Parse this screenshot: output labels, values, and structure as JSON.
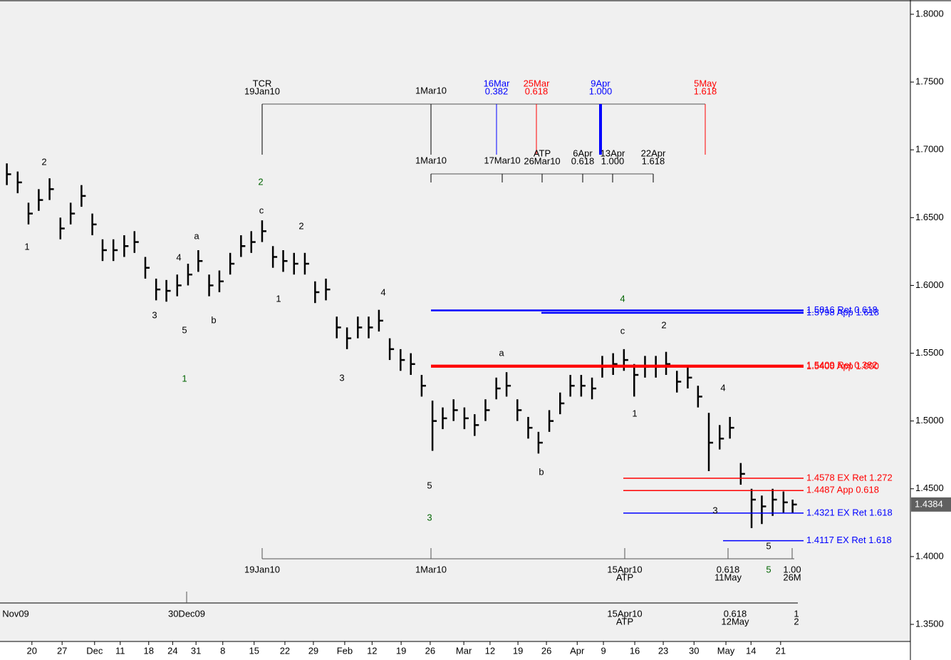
{
  "chart_data": {
    "type": "ohlc",
    "x": [
      1.2,
      3.1,
      5.0,
      6.8,
      8.7,
      10.6,
      12.4,
      14.3,
      16.2,
      18.0,
      19.9,
      21.8,
      23.6,
      25.5,
      27.4,
      29.2,
      31.1,
      33.0,
      34.8,
      36.7,
      38.5,
      40.4,
      42.3,
      44.1,
      46.0,
      47.9,
      49.7,
      51.6,
      53.5,
      55.3,
      57.2,
      59.1,
      60.9,
      62.8,
      64.7,
      66.5,
      68.4,
      70.3,
      72.1,
      74.0,
      75.9,
      77.7,
      79.6,
      81.5,
      83.3,
      85.2,
      87.1,
      88.9,
      90.8,
      92.7,
      94.5,
      96.4,
      98.3,
      100.1,
      102.0,
      103.9,
      105.7,
      107.6,
      109.5,
      111.3,
      113.2,
      115.1,
      116.9,
      118.8,
      120.7,
      122.5,
      124.4,
      126.3,
      128.1,
      130.0,
      131.9,
      133.7,
      135.6,
      137.5,
      139.1
    ],
    "high": [
      1.69,
      1.684,
      1.661,
      1.671,
      1.679,
      1.65,
      1.661,
      1.674,
      1.653,
      1.634,
      1.634,
      1.637,
      1.64,
      1.621,
      1.605,
      1.604,
      1.608,
      1.616,
      1.626,
      1.608,
      1.611,
      1.624,
      1.637,
      1.64,
      1.648,
      1.629,
      1.626,
      1.624,
      1.624,
      1.603,
      1.605,
      1.577,
      1.569,
      1.577,
      1.577,
      1.582,
      1.561,
      1.553,
      1.55,
      1.534,
      1.515,
      1.51,
      1.516,
      1.51,
      1.505,
      1.516,
      1.532,
      1.536,
      1.516,
      1.503,
      1.492,
      1.508,
      1.521,
      1.534,
      1.534,
      1.532,
      1.548,
      1.55,
      1.553,
      1.542,
      1.548,
      1.548,
      1.551,
      1.537,
      1.54,
      1.526,
      1.506,
      1.497,
      1.503,
      1.469,
      1.45,
      1.445,
      1.45,
      1.448,
      1.442
    ],
    "low": [
      1.674,
      1.668,
      1.645,
      1.655,
      1.663,
      1.634,
      1.645,
      1.658,
      1.637,
      1.618,
      1.618,
      1.621,
      1.624,
      1.605,
      1.589,
      1.588,
      1.592,
      1.6,
      1.61,
      1.592,
      1.595,
      1.608,
      1.621,
      1.624,
      1.632,
      1.613,
      1.61,
      1.608,
      1.608,
      1.587,
      1.589,
      1.561,
      1.553,
      1.561,
      1.561,
      1.566,
      1.545,
      1.537,
      1.534,
      1.518,
      1.478,
      1.494,
      1.5,
      1.494,
      1.489,
      1.5,
      1.516,
      1.518,
      1.5,
      1.487,
      1.476,
      1.492,
      1.505,
      1.518,
      1.518,
      1.516,
      1.532,
      1.534,
      1.537,
      1.518,
      1.532,
      1.532,
      1.534,
      1.521,
      1.524,
      1.51,
      1.463,
      1.479,
      1.487,
      1.453,
      1.421,
      1.424,
      1.43,
      1.432,
      1.432
    ],
    "close": [
      1.682,
      1.676,
      1.653,
      1.663,
      1.671,
      1.642,
      1.653,
      1.666,
      1.645,
      1.626,
      1.626,
      1.629,
      1.632,
      1.613,
      1.597,
      1.596,
      1.6,
      1.608,
      1.618,
      1.6,
      1.603,
      1.616,
      1.629,
      1.632,
      1.64,
      1.621,
      1.618,
      1.616,
      1.616,
      1.595,
      1.597,
      1.569,
      1.561,
      1.569,
      1.569,
      1.574,
      1.553,
      1.545,
      1.542,
      1.526,
      1.5,
      1.502,
      1.508,
      1.502,
      1.497,
      1.508,
      1.524,
      1.526,
      1.508,
      1.495,
      1.484,
      1.5,
      1.513,
      1.526,
      1.526,
      1.524,
      1.54,
      1.542,
      1.545,
      1.534,
      1.54,
      1.54,
      1.542,
      1.529,
      1.532,
      1.518,
      1.484,
      1.487,
      1.495,
      1.461,
      1.442,
      1.437,
      1.442,
      1.44,
      1.4384
    ],
    "last_price": {
      "value": 1.4384,
      "label": "1.4384"
    },
    "color": "#000000",
    "xlim": [
      0,
      159.4
    ],
    "xticks": [
      {
        "value": 5.6,
        "label": "20"
      },
      {
        "value": 10.9,
        "label": "27"
      },
      {
        "value": 16.6,
        "label": "Dec"
      },
      {
        "value": 21.1,
        "label": "11"
      },
      {
        "value": 26.1,
        "label": "18"
      },
      {
        "value": 30.3,
        "label": "24"
      },
      {
        "value": 34.4,
        "label": "31"
      },
      {
        "value": 39.1,
        "label": "8"
      },
      {
        "value": 44.6,
        "label": "15"
      },
      {
        "value": 50.0,
        "label": "22"
      },
      {
        "value": 55.0,
        "label": "29"
      },
      {
        "value": 60.5,
        "label": "Feb"
      },
      {
        "value": 65.3,
        "label": "12"
      },
      {
        "value": 70.4,
        "label": "19"
      },
      {
        "value": 75.5,
        "label": "26"
      },
      {
        "value": 81.4,
        "label": "Mar"
      },
      {
        "value": 86.0,
        "label": "12"
      },
      {
        "value": 90.9,
        "label": "19"
      },
      {
        "value": 95.9,
        "label": "26"
      },
      {
        "value": 101.3,
        "label": "Apr"
      },
      {
        "value": 105.9,
        "label": "9"
      },
      {
        "value": 111.4,
        "label": "16"
      },
      {
        "value": 116.4,
        "label": "23"
      },
      {
        "value": 121.8,
        "label": "30"
      },
      {
        "value": 127.4,
        "label": "May"
      },
      {
        "value": 131.8,
        "label": "14"
      },
      {
        "value": 137.0,
        "label": "21"
      }
    ],
    "ylim": [
      1.35,
      1.8
    ],
    "yticks": [
      {
        "value": 1.35,
        "label": "1.3500"
      },
      {
        "value": 1.4,
        "label": "1.4000"
      },
      {
        "value": 1.45,
        "label": "1.4500"
      },
      {
        "value": 1.5,
        "label": "1.5000"
      },
      {
        "value": 1.55,
        "label": "1.5500"
      },
      {
        "value": 1.6,
        "label": "1.6000"
      },
      {
        "value": 1.65,
        "label": "1.6500"
      },
      {
        "value": 1.7,
        "label": "1.7000"
      },
      {
        "value": 1.75,
        "label": "1.7500"
      },
      {
        "value": 1.8,
        "label": "1.8000"
      }
    ],
    "levels": [
      {
        "value": 1.5816,
        "label": "1.5816 Ret 0.618",
        "color": "#0000ff"
      },
      {
        "value": 1.5798,
        "label": "1.5798 App 1.618",
        "color": "#0000ff"
      },
      {
        "value": 1.5409,
        "label": "1.5409 Ret 0.382",
        "color": "#ff0000"
      },
      {
        "value": 1.54,
        "label": "1.5400 App 1.000",
        "color": "#ff0000"
      },
      {
        "value": 1.4578,
        "label": "1.4578 EX Ret 1.272",
        "color": "#ff0000"
      },
      {
        "value": 1.4487,
        "label": "1.4487 App 0.618",
        "color": "#ff0000"
      },
      {
        "value": 1.4321,
        "label": "1.4321 EX Ret 1.618",
        "color": "#0000ff"
      },
      {
        "value": 1.4117,
        "label": "1.4117 EX Ret 1.618",
        "color": "#0000ff"
      }
    ],
    "wave_labels": [
      "2",
      "1",
      "3",
      "4",
      "5",
      "a",
      "b",
      "1",
      "c",
      "2",
      "2",
      "1",
      "4",
      "3",
      "5",
      "3",
      "a",
      "b",
      "4",
      "c",
      "2",
      "1",
      "4",
      "3",
      "5",
      "5"
    ],
    "time_projections": [
      [
        [
          "TCR",
          "19Jan10"
        ],
        [
          "1Mar10"
        ],
        [
          "16Mar",
          "0.382"
        ],
        [
          "25Mar",
          "0.618"
        ],
        [
          "9Apr",
          "1.000"
        ],
        [
          "5May",
          "1.618"
        ]
      ],
      [
        [
          "1Mar10"
        ],
        [
          "17Mar10"
        ],
        [
          "ATP",
          "26Mar10"
        ],
        [
          "6Apr",
          "0.618"
        ],
        [
          "13Apr",
          "1.000"
        ],
        [
          "22Apr",
          "1.618"
        ]
      ],
      [
        [
          "19Jan10"
        ],
        [
          "1Mar10"
        ],
        [
          "15Apr10",
          "ATP"
        ],
        [
          "0.618",
          "11May"
        ],
        [
          "1.00",
          "26M"
        ]
      ],
      [
        [
          "Nov09"
        ],
        [
          "30Dec09"
        ],
        [
          "15Apr10",
          "ATP"
        ],
        [
          "0.618",
          "12May"
        ],
        [
          "1",
          "2"
        ]
      ]
    ]
  }
}
